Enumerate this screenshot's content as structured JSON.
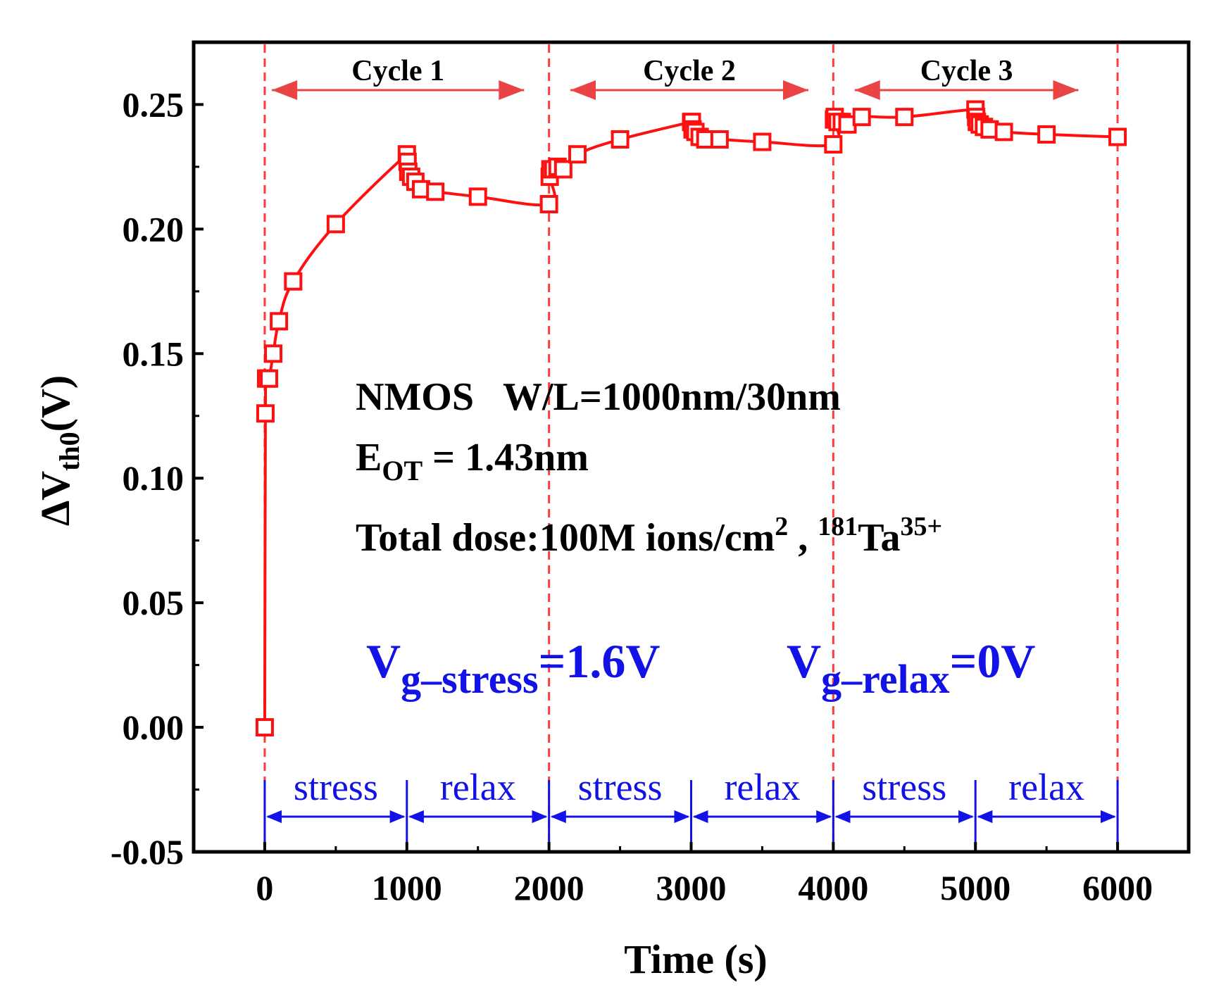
{
  "chart_data": {
    "type": "line",
    "xlabel": "Time (s)",
    "ylabel_main": "ΔV",
    "ylabel_sub": "th0",
    "ylabel_unit": "(V)",
    "xlim": [
      -500,
      6500
    ],
    "ylim": [
      -0.05,
      0.275
    ],
    "xticks": [
      0,
      1000,
      2000,
      3000,
      4000,
      5000,
      6000
    ],
    "xtick_labels": [
      "0",
      "1000",
      "2000",
      "3000",
      "4000",
      "5000",
      "6000"
    ],
    "yticks": [
      -0.05,
      0.0,
      0.05,
      0.1,
      0.15,
      0.2,
      0.25
    ],
    "ytick_labels": [
      "-0.05",
      "0.00",
      "0.05",
      "0.10",
      "0.15",
      "0.20",
      "0.25"
    ],
    "grid": false,
    "legend": "none",
    "series": [
      {
        "color": "#ff0f0f",
        "marker": "open-square",
        "x": [
          0,
          5,
          10,
          30,
          60,
          100,
          200,
          500,
          1000,
          1005,
          1010,
          1030,
          1060,
          1100,
          1200,
          1500,
          2000,
          2005,
          2010,
          2030,
          2060,
          2100,
          2200,
          2500,
          3000,
          3005,
          3010,
          3030,
          3060,
          3100,
          3200,
          3500,
          4000,
          4005,
          4010,
          4030,
          4060,
          4100,
          4200,
          4500,
          5000,
          5005,
          5010,
          5030,
          5060,
          5100,
          5200,
          5500,
          6000
        ],
        "y": [
          0.0,
          0.126,
          0.14,
          0.14,
          0.15,
          0.163,
          0.179,
          0.202,
          0.23,
          0.227,
          0.223,
          0.221,
          0.219,
          0.216,
          0.215,
          0.213,
          0.21,
          0.221,
          0.224,
          0.224,
          0.225,
          0.224,
          0.23,
          0.236,
          0.243,
          0.243,
          0.24,
          0.239,
          0.237,
          0.236,
          0.236,
          0.235,
          0.234,
          0.244,
          0.245,
          0.243,
          0.243,
          0.242,
          0.245,
          0.245,
          0.248,
          0.245,
          0.243,
          0.242,
          0.241,
          0.24,
          0.239,
          0.238,
          0.237
        ]
      }
    ],
    "cycle_boundaries": [
      0,
      2000,
      4000,
      6000
    ],
    "cycle_labels": [
      {
        "text": "Cycle 1",
        "from": 100,
        "to": 1800
      },
      {
        "text": "Cycle 2",
        "from": 2200,
        "to": 3800
      },
      {
        "text": "Cycle 3",
        "from": 4200,
        "to": 5700
      }
    ],
    "phases": [
      {
        "label": "stress",
        "from": 0,
        "to": 1000
      },
      {
        "label": "relax",
        "from": 1000,
        "to": 2000
      },
      {
        "label": "stress",
        "from": 2000,
        "to": 3000
      },
      {
        "label": "relax",
        "from": 3000,
        "to": 4000
      },
      {
        "label": "stress",
        "from": 4000,
        "to": 5000
      },
      {
        "label": "relax",
        "from": 5000,
        "to": 6000
      }
    ],
    "colors": {
      "series": "#ff0f0f",
      "boundary": "#ff3b3b",
      "phase": "#1212e6"
    }
  },
  "annotations": {
    "line1": "NMOS   W/L=1000nm/30nm",
    "line2_main": "E",
    "line2_sub": "OT",
    "line2_rest": " = 1.43nm",
    "line3_a": "Total dose:100M ions/cm",
    "line3_sup1": "2",
    "line3_b": " , ",
    "line3_sup2": "181",
    "line3_c": "Ta",
    "line3_sup3": "35+",
    "vg_stress_main": "V",
    "vg_stress_sub": "g–stress",
    "vg_stress_val": "=1.6V",
    "vg_relax_main": "V",
    "vg_relax_sub": "g–relax",
    "vg_relax_val": "=0V"
  }
}
